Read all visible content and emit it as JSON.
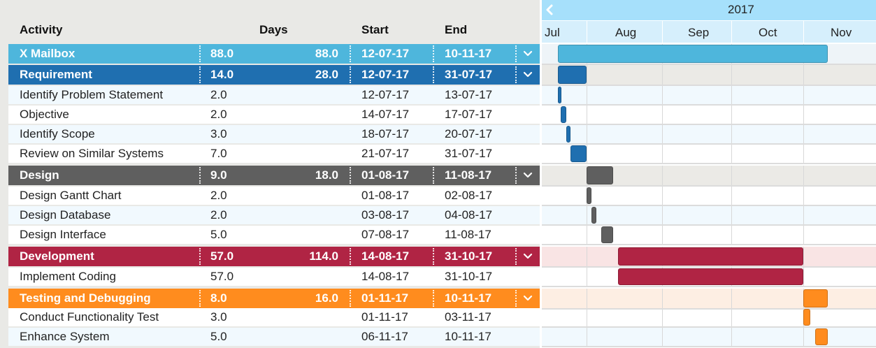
{
  "columns": {
    "activity": "Activity",
    "days": "Days",
    "start": "Start",
    "end": "End"
  },
  "timeline": {
    "year": "2017",
    "months": [
      "Jul",
      "Aug",
      "Sep",
      "Oct",
      "Nov"
    ]
  },
  "colors": {
    "mailbox": "#4eb6dc",
    "requirement": "#1f6fb0",
    "design": "#5f5f5f",
    "development": "#b02444",
    "testing": "#ff8c1e"
  },
  "rows": [
    {
      "type": "group",
      "color": "mailbox",
      "name": "X Mailbox",
      "days": "88.0",
      "total": "88.0",
      "start": "12-07-17",
      "end": "10-11-17"
    },
    {
      "type": "group",
      "color": "requirement",
      "name": "Requirement",
      "days": "14.0",
      "total": "28.0",
      "start": "12-07-17",
      "end": "31-07-17"
    },
    {
      "type": "task",
      "color": "requirement",
      "name": "Identify Problem Statement",
      "days": "2.0",
      "start": "12-07-17",
      "end": "13-07-17"
    },
    {
      "type": "task",
      "color": "requirement",
      "name": "Objective",
      "days": "2.0",
      "start": "14-07-17",
      "end": "17-07-17"
    },
    {
      "type": "task",
      "color": "requirement",
      "name": "Identify Scope",
      "days": "3.0",
      "start": "18-07-17",
      "end": "20-07-17"
    },
    {
      "type": "task",
      "color": "requirement",
      "name": "Review on Similar Systems",
      "days": "7.0",
      "start": "21-07-17",
      "end": "31-07-17"
    },
    {
      "type": "group",
      "color": "design",
      "name": "Design",
      "days": "9.0",
      "total": "18.0",
      "start": "01-08-17",
      "end": "11-08-17"
    },
    {
      "type": "task",
      "color": "design",
      "name": "Design Gantt Chart",
      "days": "2.0",
      "start": "01-08-17",
      "end": "02-08-17"
    },
    {
      "type": "task",
      "color": "design",
      "name": "Design Database",
      "days": "2.0",
      "start": "03-08-17",
      "end": "04-08-17"
    },
    {
      "type": "task",
      "color": "design",
      "name": "Design Interface",
      "days": "5.0",
      "start": "07-08-17",
      "end": "11-08-17"
    },
    {
      "type": "group",
      "color": "development",
      "name": "Development",
      "days": "57.0",
      "total": "114.0",
      "start": "14-08-17",
      "end": "31-10-17"
    },
    {
      "type": "task",
      "color": "development",
      "name": "Implement Coding",
      "days": "57.0",
      "start": "14-08-17",
      "end": "31-10-17"
    },
    {
      "type": "group",
      "color": "testing",
      "name": "Testing and Debugging",
      "days": "8.0",
      "total": "16.0",
      "start": "01-11-17",
      "end": "10-11-17"
    },
    {
      "type": "task",
      "color": "testing",
      "name": "Conduct Functionality Test",
      "days": "3.0",
      "start": "01-11-17",
      "end": "03-11-17"
    },
    {
      "type": "task",
      "color": "testing",
      "name": "Enhance System",
      "days": "5.0",
      "start": "06-11-17",
      "end": "10-11-17"
    }
  ]
}
